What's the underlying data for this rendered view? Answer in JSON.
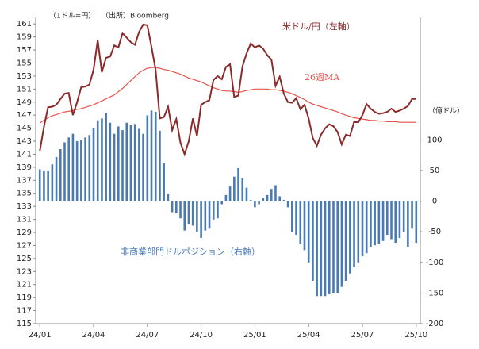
{
  "chart_data": {
    "type": "line",
    "unit_label": "（1ドル=円）",
    "source": "（出所）Bloomberg",
    "y2label": "（億ドル）",
    "x": [
      0,
      1,
      2,
      3,
      4,
      5,
      6,
      7,
      8,
      9,
      10,
      11,
      12,
      13,
      14,
      15,
      16,
      17,
      18,
      19,
      20,
      21,
      22,
      23,
      24,
      25,
      26,
      27,
      28,
      29,
      30,
      31,
      32,
      33,
      34,
      35,
      36,
      37,
      38,
      39,
      40,
      41,
      42,
      43,
      44,
      45,
      46,
      47,
      48,
      49,
      50,
      51,
      52,
      53,
      54,
      55,
      56,
      57,
      58,
      59,
      60,
      61,
      62,
      63,
      64,
      65,
      66,
      67,
      68,
      69,
      70,
      71,
      72,
      73,
      74,
      75,
      76,
      77,
      78,
      79,
      80,
      81,
      82,
      83,
      84,
      85,
      86,
      87,
      88,
      89,
      90,
      91
    ],
    "xlim": [
      -1,
      92
    ],
    "xticks": [
      {
        "value": 0,
        "label": "24/01"
      },
      {
        "value": 13,
        "label": "24/04"
      },
      {
        "value": 26,
        "label": "24/07"
      },
      {
        "value": 39,
        "label": "24/10"
      },
      {
        "value": 52,
        "label": "25/01"
      },
      {
        "value": 65,
        "label": "25/04"
      },
      {
        "value": 78,
        "label": "25/07"
      },
      {
        "value": 91,
        "label": "25/10"
      }
    ],
    "ylim": [
      115,
      162
    ],
    "yticks": [
      115,
      117,
      119,
      121,
      123,
      125,
      127,
      129,
      131,
      133,
      135,
      137,
      139,
      141,
      143,
      145,
      147,
      149,
      151,
      153,
      155,
      157,
      159,
      161
    ],
    "y2lim": [
      -200,
      300
    ],
    "y2ticks": [
      -200,
      -150,
      -100,
      -50,
      0,
      50,
      100
    ],
    "series": [
      {
        "name": "非商業部門ドルポジション（右軸）",
        "type": "bar",
        "axis": "y2",
        "color": "#4a7ab4",
        "values": [
          52,
          50,
          50,
          60,
          72,
          85,
          96,
          104,
          110,
          98,
          100,
          104,
          108,
          120,
          132,
          135,
          144,
          128,
          110,
          122,
          116,
          128,
          125,
          126,
          118,
          110,
          140,
          148,
          146,
          115,
          62,
          12,
          -18,
          -20,
          -28,
          -48,
          -38,
          -40,
          -50,
          -60,
          -48,
          -45,
          -30,
          -28,
          -5,
          10,
          24,
          40,
          54,
          38,
          22,
          2,
          -10,
          -5,
          5,
          10,
          20,
          26,
          8,
          2,
          -10,
          -50,
          -55,
          -70,
          -80,
          -100,
          -130,
          -155,
          -155,
          -155,
          -152,
          -150,
          -150,
          -140,
          -130,
          -118,
          -108,
          -100,
          -90,
          -85,
          -75,
          -72,
          -70,
          -65,
          -55,
          -62,
          -68,
          -60,
          -50,
          -75,
          -45,
          -68
        ]
      },
      {
        "name": "26週MA",
        "type": "line",
        "color": "#e8524a",
        "values": [
          145.8,
          146.2,
          146.6,
          146.9,
          147.1,
          147.3,
          147.5,
          147.6,
          147.7,
          147.9,
          148.0,
          148.2,
          148.4,
          148.6,
          148.9,
          149.2,
          149.5,
          149.8,
          150.1,
          150.6,
          151.1,
          151.7,
          152.3,
          152.9,
          153.5,
          153.9,
          154.2,
          154.3,
          154.3,
          154.2,
          154.0,
          153.9,
          153.7,
          153.5,
          153.3,
          153.0,
          152.7,
          152.5,
          152.3,
          152.1,
          151.8,
          151.5,
          151.2,
          151.0,
          150.8,
          150.7,
          150.7,
          150.6,
          150.5,
          150.6,
          150.8,
          150.9,
          151.0,
          151.0,
          151.0,
          151.0,
          150.9,
          150.9,
          150.8,
          150.7,
          150.5,
          150.3,
          150.0,
          149.7,
          149.4,
          149.0,
          148.7,
          148.5,
          148.3,
          148.1,
          147.9,
          147.7,
          147.5,
          147.2,
          147.0,
          146.8,
          146.6,
          146.5,
          146.4,
          146.3,
          146.2,
          146.2,
          146.1,
          146.1,
          146.0,
          146.0,
          146.0,
          145.9,
          145.9,
          145.9,
          145.9,
          145.9
        ]
      },
      {
        "name": "米ドル/円（左軸）",
        "type": "line",
        "color": "#8b2a2a",
        "values": [
          141.5,
          145.2,
          148.2,
          148.3,
          148.6,
          149.5,
          150.3,
          150.4,
          147.0,
          149.0,
          151.3,
          151.4,
          151.7,
          154.0,
          158.5,
          153.6,
          155.8,
          156.0,
          157.7,
          157.4,
          159.6,
          158.9,
          158.2,
          157.8,
          159.8,
          160.9,
          160.8,
          157.5,
          154.0,
          146.5,
          146.7,
          148.3,
          144.7,
          146.4,
          142.8,
          141.0,
          143.0,
          146.5,
          143.8,
          148.6,
          149.0,
          149.3,
          152.4,
          153.0,
          152.5,
          154.4,
          154.8,
          149.8,
          150.0,
          154.5,
          156.5,
          158.0,
          157.4,
          157.7,
          157.2,
          156.2,
          155.5,
          151.5,
          152.9,
          150.3,
          149.0,
          148.9,
          149.6,
          147.9,
          148.6,
          146.5,
          143.5,
          142.3,
          144.0,
          145.0,
          145.6,
          145.3,
          144.4,
          142.5,
          144.0,
          143.8,
          146.0,
          145.9,
          147.0,
          148.7,
          148.0,
          147.5,
          147.2,
          147.3,
          147.5,
          148.0,
          147.5,
          147.7,
          148.0,
          148.4,
          149.5,
          149.5
        ]
      }
    ]
  }
}
